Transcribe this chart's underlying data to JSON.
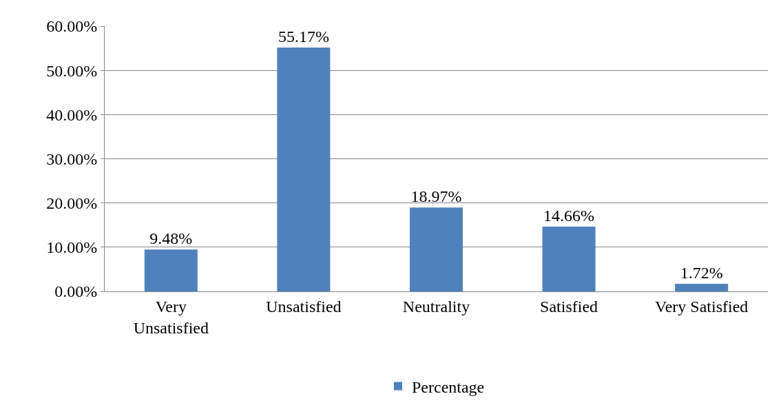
{
  "chart_data": {
    "type": "bar",
    "categories": [
      "Very Unsatisfied",
      "Unsatisfied",
      "Neutrality",
      "Satisfied",
      "Very Satisfied"
    ],
    "series": [
      {
        "name": "Percentage",
        "color": "#4f81bd",
        "values": [
          9.48,
          55.17,
          18.97,
          14.66,
          1.72
        ],
        "value_labels": [
          "9.48%",
          "55.17%",
          "18.97%",
          "14.66%",
          "1.72%"
        ]
      }
    ],
    "ylim": [
      0,
      60
    ],
    "yticks": [
      {
        "value": 0,
        "label": "0.00%"
      },
      {
        "value": 10,
        "label": "10.00%"
      },
      {
        "value": 20,
        "label": "20.00%"
      },
      {
        "value": 30,
        "label": "30.00%"
      },
      {
        "value": 40,
        "label": "40.00%"
      },
      {
        "value": 50,
        "label": "50.00%"
      },
      {
        "value": 60,
        "label": "60.00%"
      }
    ],
    "grid": "y",
    "legend": "bottom"
  }
}
